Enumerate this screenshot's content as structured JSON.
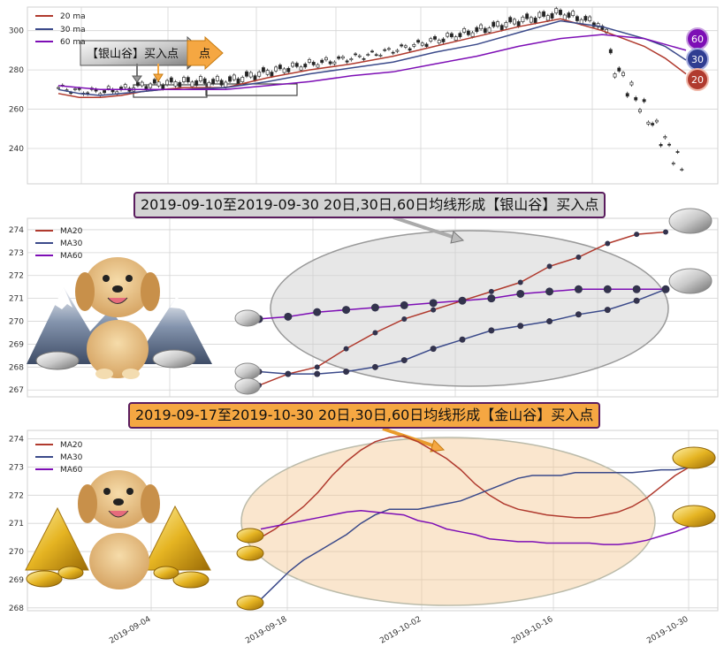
{
  "banners": {
    "silver": "2019-09-10至2019-09-30 20日,30日,60日均线形成【银山谷】买入点",
    "gold": "2019-09-17至2019-10-30 20日,30日,60日均线形成【金山谷】买入点"
  },
  "arrow_label": "【银山谷】买入点",
  "arrow_label_tail": "点",
  "badges": [
    "60",
    "30",
    "20"
  ],
  "colors": {
    "ma20": "#b03a2e",
    "ma30": "#3b4a8a",
    "ma60": "#7d0eb5",
    "silver_fill": "#cccccc",
    "gold_fill": "#f5a742",
    "grid": "#d4d4d4"
  },
  "icons": [
    "golden-retriever-icon",
    "snowy-mountain-icon",
    "silver-ingot-icon",
    "gold-ingot-icon",
    "gold-pyramid-icon"
  ],
  "chart_data": [
    {
      "type": "line",
      "legend": [
        "20 ma",
        "30 ma",
        "60 ma"
      ],
      "ylim": [
        222,
        312
      ],
      "yticks": [
        240,
        260,
        280,
        300
      ],
      "xrange": [
        0,
        150
      ],
      "series": [
        {
          "name": "20 ma",
          "x": [
            0,
            5,
            10,
            15,
            20,
            25,
            30,
            40,
            50,
            60,
            70,
            80,
            90,
            100,
            110,
            120,
            130,
            140,
            145,
            150
          ],
          "values": [
            268,
            266,
            266,
            267,
            269,
            270,
            271,
            271,
            276,
            280,
            283,
            287,
            292,
            297,
            302,
            306,
            300,
            292,
            286,
            278
          ]
        },
        {
          "name": "30 ma",
          "x": [
            0,
            5,
            10,
            15,
            20,
            25,
            30,
            40,
            50,
            60,
            70,
            80,
            90,
            100,
            110,
            120,
            130,
            140,
            145,
            150
          ],
          "values": [
            270,
            268,
            267,
            268,
            269,
            270,
            270,
            271,
            274,
            278,
            281,
            284,
            289,
            293,
            299,
            305,
            302,
            296,
            292,
            285
          ]
        },
        {
          "name": "60 ma",
          "x": [
            0,
            5,
            10,
            15,
            20,
            25,
            30,
            40,
            50,
            60,
            70,
            80,
            90,
            100,
            110,
            120,
            130,
            140,
            145,
            150
          ],
          "values": [
            272,
            271,
            270,
            270,
            270,
            270,
            270,
            270,
            272,
            274,
            277,
            279,
            283,
            287,
            292,
            296,
            298,
            296,
            293,
            290
          ]
        }
      ]
    },
    {
      "type": "line",
      "legend": [
        "MA20",
        "MA30",
        "MA60"
      ],
      "ylim": [
        266.7,
        274.5
      ],
      "yticks": [
        267,
        268,
        269,
        270,
        271,
        272,
        273,
        274
      ],
      "x": [
        0,
        1,
        2,
        3,
        4,
        5,
        6,
        7,
        8,
        9,
        10,
        11,
        12,
        13,
        14
      ],
      "series": [
        {
          "name": "MA20",
          "values": [
            267.2,
            267.7,
            268.0,
            268.8,
            269.5,
            270.1,
            270.5,
            270.9,
            271.3,
            271.7,
            272.4,
            272.8,
            273.4,
            273.8,
            273.9
          ]
        },
        {
          "name": "MA30",
          "values": [
            267.8,
            267.7,
            267.7,
            267.8,
            268.0,
            268.3,
            268.8,
            269.2,
            269.6,
            269.8,
            270.0,
            270.3,
            270.5,
            270.9,
            271.4
          ]
        },
        {
          "name": "MA60",
          "values": [
            270.1,
            270.2,
            270.4,
            270.5,
            270.6,
            270.7,
            270.8,
            270.9,
            271.0,
            271.2,
            271.3,
            271.4,
            271.4,
            271.4,
            271.4
          ]
        }
      ]
    },
    {
      "type": "line",
      "legend": [
        "MA20",
        "MA30",
        "MA60"
      ],
      "ylim": [
        267.9,
        274.3
      ],
      "yticks": [
        268,
        269,
        270,
        271,
        272,
        273,
        274
      ],
      "xrange": [
        0,
        31
      ],
      "xticks": [
        "2019-09-04",
        "2019-09-18",
        "2019-10-02",
        "2019-10-16",
        "2019-10-30"
      ],
      "series": [
        {
          "name": "MA20",
          "x": [
            0,
            1,
            2,
            3,
            4,
            5,
            6,
            7,
            8,
            9,
            10,
            11,
            12,
            13,
            14,
            15,
            16,
            17,
            18,
            19,
            20,
            21,
            22,
            23,
            24,
            25,
            26,
            27,
            28,
            29,
            30
          ],
          "values": [
            270.5,
            270.8,
            271.2,
            271.6,
            272.1,
            272.7,
            273.2,
            273.6,
            273.9,
            274.05,
            274.1,
            273.9,
            273.6,
            273.3,
            272.9,
            272.4,
            272.0,
            271.7,
            271.5,
            271.4,
            271.3,
            271.25,
            271.2,
            271.2,
            271.3,
            271.4,
            271.6,
            271.9,
            272.3,
            272.7,
            273.0
          ]
        },
        {
          "name": "MA30",
          "x": [
            0,
            1,
            2,
            3,
            4,
            5,
            6,
            7,
            8,
            9,
            10,
            11,
            12,
            13,
            14,
            15,
            16,
            17,
            18,
            19,
            20,
            21,
            22,
            23,
            24,
            25,
            26,
            27,
            28,
            29,
            30
          ],
          "values": [
            268.3,
            268.8,
            269.3,
            269.7,
            270.0,
            270.3,
            270.6,
            271.0,
            271.3,
            271.5,
            271.5,
            271.5,
            271.6,
            271.7,
            271.8,
            272.0,
            272.2,
            272.4,
            272.6,
            272.7,
            272.7,
            272.7,
            272.8,
            272.8,
            272.8,
            272.8,
            272.8,
            272.85,
            272.9,
            272.9,
            273.0
          ]
        },
        {
          "name": "MA60",
          "x": [
            0,
            1,
            2,
            3,
            4,
            5,
            6,
            7,
            8,
            9,
            10,
            11,
            12,
            13,
            14,
            15,
            16,
            17,
            18,
            19,
            20,
            21,
            22,
            23,
            24,
            25,
            26,
            27,
            28,
            29,
            30
          ],
          "values": [
            270.8,
            270.9,
            271.0,
            271.1,
            271.2,
            271.3,
            271.4,
            271.45,
            271.4,
            271.35,
            271.3,
            271.1,
            271.0,
            270.8,
            270.7,
            270.6,
            270.45,
            270.4,
            270.35,
            270.35,
            270.3,
            270.3,
            270.3,
            270.3,
            270.25,
            270.25,
            270.3,
            270.4,
            270.55,
            270.7,
            270.9
          ]
        }
      ]
    }
  ]
}
